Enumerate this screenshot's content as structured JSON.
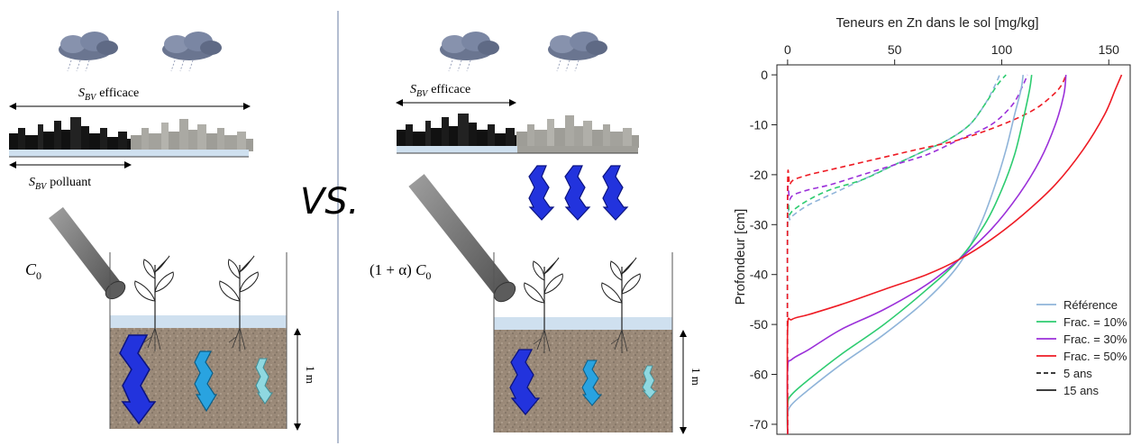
{
  "diagram": {
    "left": {
      "s_bv_efficace": "efficace",
      "s_bv_polluant": "polluant",
      "concentration": "C",
      "depth_label": "1 m"
    },
    "separator": "VS.",
    "right": {
      "s_bv_efficace": "efficace",
      "concentration_prefix": "(1 + α) ",
      "concentration": "C",
      "depth_label": "1 m"
    },
    "symbols": {
      "S": "S",
      "BV": "BV",
      "zero": "0"
    }
  },
  "chart_data": {
    "type": "line",
    "title": "Teneurs en Zn dans le sol [mg/kg]",
    "xlabel": "Teneurs en Zn dans le sol [mg/kg]",
    "ylabel": "Profondeur [cm]",
    "xlim": [
      -5,
      160
    ],
    "ylim": [
      -72,
      2
    ],
    "xticks": [
      0,
      50,
      100,
      150
    ],
    "yticks": [
      0,
      -10,
      -20,
      -30,
      -40,
      -50,
      -60,
      -70
    ],
    "x_axis_position": "top",
    "grid": false,
    "legend_position": "bottom-right",
    "series": [
      {
        "name": "Référence",
        "linestyle": "dashed",
        "color": "#8fb4d9",
        "x": [
          0,
          0,
          1,
          3,
          10,
          20,
          35,
          50,
          65,
          75,
          85,
          92,
          97,
          99
        ],
        "y": [
          -72,
          -30,
          -29,
          -28,
          -26,
          -24,
          -21,
          -18,
          -15,
          -13,
          -10,
          -6,
          -2,
          0
        ]
      },
      {
        "name": "Frac. = 10%",
        "linestyle": "dashed",
        "color": "#2ecc71",
        "x": [
          0,
          0,
          1,
          3,
          10,
          20,
          35,
          50,
          65,
          75,
          85,
          92,
          98,
          102
        ],
        "y": [
          -72,
          -29,
          -28,
          -27,
          -25,
          -23,
          -21,
          -18,
          -15,
          -13,
          -10,
          -6,
          -2,
          0
        ]
      },
      {
        "name": "Frac. = 30%",
        "linestyle": "dashed",
        "color": "#9b30d9",
        "x": [
          0,
          0,
          1,
          3,
          10,
          20,
          35,
          50,
          65,
          80,
          95,
          105,
          110,
          112
        ],
        "y": [
          -72,
          -26,
          -25,
          -24,
          -23,
          -22,
          -20,
          -18,
          -16,
          -13,
          -10,
          -6,
          -2,
          0
        ]
      },
      {
        "name": "Frac. = 50%",
        "linestyle": "dashed",
        "color": "#ee1b24",
        "x": [
          0,
          0,
          1,
          3,
          10,
          20,
          40,
          60,
          80,
          100,
          115,
          124,
          128,
          130
        ],
        "y": [
          -72,
          -23,
          -22,
          -21,
          -20,
          -19,
          -17,
          -15,
          -13,
          -10,
          -7,
          -4,
          -2,
          0
        ]
      },
      {
        "name": "Référence",
        "linestyle": "solid",
        "color": "#8fb4d9",
        "x": [
          0,
          0,
          2,
          10,
          25,
          45,
          65,
          80,
          90,
          97,
          102,
          106,
          109,
          110
        ],
        "y": [
          -72,
          -68,
          -66,
          -63,
          -58,
          -52,
          -45,
          -38,
          -30,
          -22,
          -15,
          -8,
          -3,
          0
        ]
      },
      {
        "name": "Frac. = 10%",
        "linestyle": "solid",
        "color": "#2ecc71",
        "x": [
          0,
          0,
          2,
          10,
          25,
          45,
          65,
          80,
          92,
          100,
          106,
          110,
          113,
          114
        ],
        "y": [
          -72,
          -66,
          -64,
          -61,
          -56,
          -50,
          -43,
          -37,
          -30,
          -23,
          -16,
          -9,
          -3,
          0
        ]
      },
      {
        "name": "Frac. = 30%",
        "linestyle": "solid",
        "color": "#9b30d9",
        "x": [
          0,
          0,
          2,
          10,
          25,
          45,
          65,
          80,
          95,
          108,
          118,
          125,
          129,
          130
        ],
        "y": [
          -72,
          -59,
          -57,
          -55,
          -51,
          -47,
          -42,
          -37,
          -31,
          -24,
          -17,
          -10,
          -4,
          0
        ]
      },
      {
        "name": "Frac. = 50%",
        "linestyle": "solid",
        "color": "#ee1b24",
        "x": [
          0,
          0,
          2,
          10,
          25,
          45,
          65,
          80,
          95,
          110,
          125,
          138,
          148,
          153,
          156
        ],
        "y": [
          -72,
          -51,
          -49,
          -48,
          -46,
          -43,
          -40,
          -37,
          -33,
          -28,
          -22,
          -15,
          -8,
          -3,
          0
        ]
      }
    ],
    "legend": [
      {
        "label": "Référence",
        "color": "#8fb4d9",
        "linestyle": "solid"
      },
      {
        "label": "Frac. = 10%",
        "color": "#2ecc71",
        "linestyle": "solid"
      },
      {
        "label": "Frac. = 30%",
        "color": "#9b30d9",
        "linestyle": "solid"
      },
      {
        "label": "Frac. = 50%",
        "color": "#ee1b24",
        "linestyle": "solid"
      },
      {
        "label": "5 ans",
        "color": "#222222",
        "linestyle": "dashed"
      },
      {
        "label": "15 ans",
        "color": "#222222",
        "linestyle": "solid"
      }
    ]
  }
}
